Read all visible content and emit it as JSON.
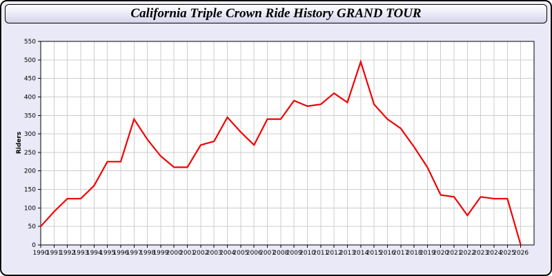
{
  "header": {
    "title": "California Triple Crown Ride History GRAND TOUR"
  },
  "colors": {
    "background": "#e9e9f7",
    "plot_bg": "#ffffff",
    "grid": "#cccccc",
    "line": "#f00000",
    "border": "#000000"
  },
  "chart_data": {
    "type": "line",
    "title": "California Triple Crown Ride History GRAND TOUR",
    "xlabel": "",
    "ylabel": "Riders",
    "legend": "none",
    "grid": "on",
    "xlim": [
      1990,
      2027
    ],
    "ylim": [
      0,
      550
    ],
    "y_ticks": [
      0,
      50,
      100,
      150,
      200,
      250,
      300,
      350,
      400,
      450,
      500,
      550
    ],
    "x": [
      1990,
      1991,
      1992,
      1993,
      1994,
      1995,
      1996,
      1997,
      1998,
      1999,
      2000,
      2001,
      2002,
      2003,
      2004,
      2005,
      2006,
      2007,
      2008,
      2009,
      2010,
      2011,
      2012,
      2013,
      2014,
      2015,
      2016,
      2017,
      2018,
      2019,
      2020,
      2021,
      2022,
      2023,
      2024,
      2025,
      2026
    ],
    "series": [
      {
        "name": "Riders",
        "values": [
          50,
          90,
          125,
          125,
          160,
          225,
          225,
          340,
          285,
          240,
          210,
          210,
          270,
          280,
          345,
          305,
          270,
          340,
          340,
          390,
          375,
          380,
          410,
          385,
          495,
          380,
          340,
          315,
          265,
          210,
          135,
          130,
          80,
          130,
          125,
          125,
          0
        ]
      }
    ]
  }
}
